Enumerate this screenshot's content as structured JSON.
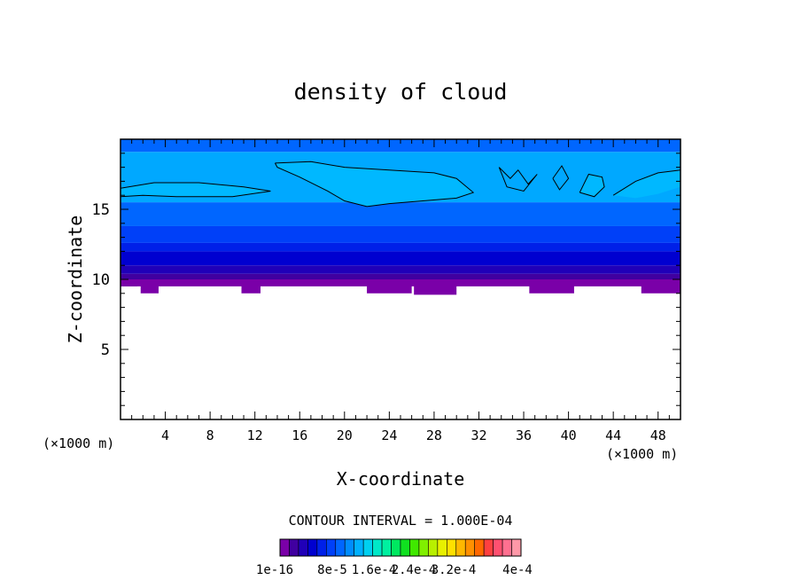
{
  "chart_data": {
    "type": "heatmap",
    "title": "density of cloud",
    "xlabel": "X-coordinate",
    "ylabel": "Z-coordinate",
    "x_unit_left": "(×1000 m)",
    "x_unit_right": "(×1000 m)",
    "xlim": [
      0,
      50
    ],
    "ylim": [
      0,
      20
    ],
    "x_ticks": [
      4,
      8,
      12,
      16,
      20,
      24,
      28,
      32,
      36,
      40,
      44,
      48
    ],
    "y_ticks": [
      5,
      10,
      15
    ],
    "contour_interval_text": "CONTOUR INTERVAL = 1.000E-04",
    "colorbar": {
      "labels": [
        "1e-16",
        "8e-5",
        "1.6e-4",
        "2.4e-4",
        "3.2e-4",
        "4e-4"
      ],
      "colors": [
        "#7a00a8",
        "#4000a0",
        "#2000b8",
        "#0000d0",
        "#0020e8",
        "#0040f8",
        "#0066ff",
        "#008cff",
        "#00b0ff",
        "#00d0f0",
        "#00e8c8",
        "#00f0a0",
        "#00e860",
        "#10e020",
        "#40e800",
        "#80f000",
        "#b8f000",
        "#e8f000",
        "#ffe000",
        "#ffb800",
        "#ff9000",
        "#ff6800",
        "#ff4040",
        "#ff5070",
        "#ff7090",
        "#ff98a8"
      ]
    },
    "bands": [
      {
        "z_bottom": 9.5,
        "z_top": 10.0,
        "color": "#7a00a8",
        "level": "1e-16"
      },
      {
        "z_bottom": 10.0,
        "z_top": 10.4,
        "color": "#4000a0",
        "level": "1.6e-5"
      },
      {
        "z_bottom": 10.4,
        "z_top": 11.0,
        "color": "#2000b8",
        "level": "3.2e-5"
      },
      {
        "z_bottom": 11.0,
        "z_top": 12.0,
        "color": "#0000d0",
        "level": "4.8e-5"
      },
      {
        "z_bottom": 12.0,
        "z_top": 12.6,
        "color": "#0020e8",
        "level": "6.4e-5"
      },
      {
        "z_bottom": 12.6,
        "z_top": 13.8,
        "color": "#0040f8",
        "level": "8e-5"
      },
      {
        "z_bottom": 13.8,
        "z_top": 15.5,
        "color": "#0066ff",
        "level": "9.6e-5"
      },
      {
        "z_bottom": 15.5,
        "z_top": 19.1,
        "color": "#00a8ff",
        "level": "1.1e-4"
      },
      {
        "z_bottom": 19.1,
        "z_top": 20.0,
        "color": "#0066ff",
        "level": "9.6e-5"
      }
    ],
    "patches": [
      {
        "color": "#7a00a8",
        "points": [
          [
            0,
            9.5
          ],
          [
            1.5,
            9.5
          ],
          [
            1.6,
            10
          ],
          [
            0,
            10
          ]
        ]
      },
      {
        "color": "#7a00a8",
        "points": [
          [
            1.8,
            9.0
          ],
          [
            3.4,
            9.0
          ],
          [
            3.4,
            10
          ],
          [
            1.8,
            10
          ]
        ]
      },
      {
        "color": "#7a00a8",
        "points": [
          [
            10.8,
            9.0
          ],
          [
            12.5,
            9.0
          ],
          [
            12.5,
            10
          ],
          [
            10.8,
            10
          ]
        ]
      },
      {
        "color": "#7a00a8",
        "points": [
          [
            22,
            9.0
          ],
          [
            26,
            9.0
          ],
          [
            26,
            10
          ],
          [
            22,
            10
          ]
        ]
      },
      {
        "color": "#7a00a8",
        "points": [
          [
            26.2,
            8.9
          ],
          [
            30,
            8.9
          ],
          [
            30,
            10
          ],
          [
            26.2,
            10
          ]
        ]
      },
      {
        "color": "#7a00a8",
        "points": [
          [
            36.5,
            9.0
          ],
          [
            40.5,
            9.0
          ],
          [
            40.5,
            10
          ],
          [
            36.5,
            10
          ]
        ]
      },
      {
        "color": "#7a00a8",
        "points": [
          [
            46.5,
            9.0
          ],
          [
            50,
            9.0
          ],
          [
            50,
            10
          ],
          [
            46.5,
            10
          ]
        ]
      },
      {
        "color": "#00b8ff",
        "points": [
          [
            13.8,
            18.3
          ],
          [
            17,
            18.4
          ],
          [
            20,
            18.0
          ],
          [
            24,
            17.8
          ],
          [
            28,
            17.6
          ],
          [
            30,
            17.2
          ],
          [
            31.5,
            16.2
          ],
          [
            30,
            15.8
          ],
          [
            27,
            15.6
          ],
          [
            24,
            15.4
          ],
          [
            22,
            15.2
          ],
          [
            20,
            15.6
          ],
          [
            18.5,
            16.3
          ],
          [
            16,
            17.3
          ],
          [
            14,
            18.0
          ]
        ]
      },
      {
        "color": "#00b8ff",
        "points": [
          [
            0,
            16.5
          ],
          [
            3,
            16.9
          ],
          [
            7,
            16.9
          ],
          [
            11,
            16.6
          ],
          [
            13.4,
            16.3
          ],
          [
            10,
            15.9
          ],
          [
            5,
            15.9
          ],
          [
            2,
            16.0
          ],
          [
            0,
            15.9
          ]
        ]
      },
      {
        "color": "#00b8ff",
        "points": [
          [
            44,
            16.0
          ],
          [
            46,
            17.0
          ],
          [
            48,
            17.6
          ],
          [
            50,
            17.8
          ],
          [
            50,
            16.6
          ],
          [
            48,
            16.1
          ],
          [
            46,
            15.8
          ]
        ]
      },
      {
        "color": "#00b8ff",
        "points": [
          [
            41,
            16.2
          ],
          [
            41.8,
            17.5
          ],
          [
            43,
            17.3
          ],
          [
            43.2,
            16.6
          ],
          [
            42.3,
            15.9
          ]
        ]
      }
    ],
    "contours": [
      {
        "points": [
          [
            13.8,
            18.3
          ],
          [
            17,
            18.4
          ],
          [
            20,
            18.0
          ],
          [
            24,
            17.8
          ],
          [
            28,
            17.6
          ],
          [
            30,
            17.2
          ],
          [
            31.5,
            16.2
          ],
          [
            30,
            15.8
          ],
          [
            27,
            15.6
          ],
          [
            24,
            15.4
          ],
          [
            22,
            15.2
          ],
          [
            20,
            15.6
          ],
          [
            18.5,
            16.3
          ],
          [
            16,
            17.3
          ],
          [
            14,
            18.0
          ],
          [
            13.8,
            18.3
          ]
        ]
      },
      {
        "points": [
          [
            0,
            16.5
          ],
          [
            3,
            16.9
          ],
          [
            7,
            16.9
          ],
          [
            11,
            16.6
          ],
          [
            13.4,
            16.3
          ],
          [
            10,
            15.9
          ],
          [
            5,
            15.9
          ],
          [
            2,
            16.0
          ],
          [
            0,
            15.9
          ]
        ]
      },
      {
        "points": [
          [
            44,
            16.0
          ],
          [
            46,
            17.0
          ],
          [
            48,
            17.6
          ],
          [
            50,
            17.8
          ]
        ]
      },
      {
        "points": [
          [
            41,
            16.2
          ],
          [
            41.8,
            17.5
          ],
          [
            43,
            17.3
          ],
          [
            43.2,
            16.6
          ],
          [
            42.3,
            15.9
          ],
          [
            41,
            16.2
          ]
        ]
      },
      {
        "points": [
          [
            33.8,
            18.0
          ],
          [
            34.8,
            17.2
          ],
          [
            35.5,
            17.8
          ],
          [
            36.4,
            16.8
          ],
          [
            37.2,
            17.5
          ],
          [
            36.0,
            16.3
          ],
          [
            34.5,
            16.6
          ],
          [
            33.8,
            18.0
          ]
        ]
      },
      {
        "points": [
          [
            38.6,
            17.2
          ],
          [
            39.4,
            18.1
          ],
          [
            40.0,
            17.2
          ],
          [
            39.2,
            16.4
          ],
          [
            38.6,
            17.2
          ]
        ]
      }
    ]
  }
}
